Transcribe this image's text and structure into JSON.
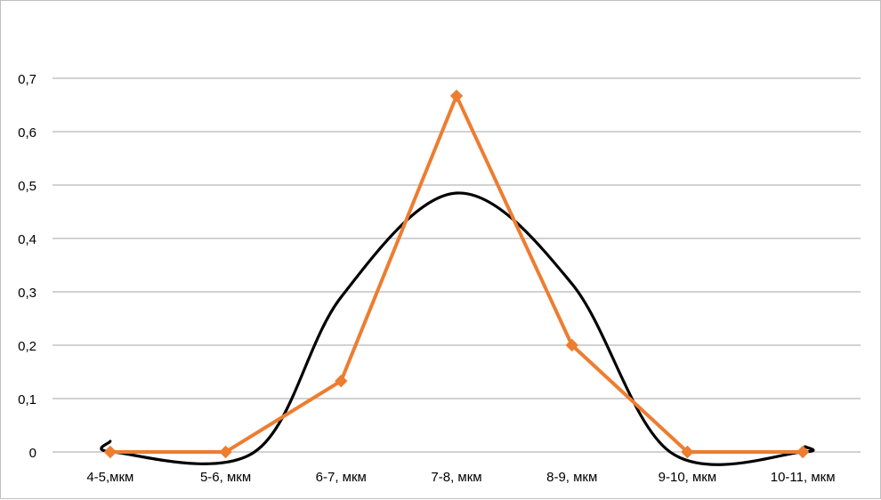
{
  "chart_data": {
    "type": "line",
    "title": "",
    "xlabel": "",
    "ylabel": "",
    "categories": [
      "4-5,мкм",
      "5-6, мкм",
      "6-7, мкм",
      "7-8, мкм",
      "8-9, мкм",
      "9-10, мкм",
      "10-11, мкм"
    ],
    "y_ticks": [
      "0",
      "0,1",
      "0,2",
      "0,3",
      "0,4",
      "0,5",
      "0,6",
      "0,7"
    ],
    "ylim": [
      0,
      0.7
    ],
    "grid": true,
    "legend": "none",
    "series": [
      {
        "color": "#ed7d31",
        "marker": "diamond",
        "values": [
          0,
          0,
          0.133,
          0.667,
          0.2,
          0,
          0
        ]
      },
      {
        "color": "#000000",
        "marker": "none",
        "smooth": true,
        "curve": [
          {
            "x": 0,
            "y": 0.02
          },
          {
            "x": 0.02,
            "y": 0.0
          },
          {
            "x": 1.25,
            "y": 0.0
          },
          {
            "x": 2,
            "y": 0.29
          },
          {
            "x": 3,
            "y": 0.485
          },
          {
            "x": 4,
            "y": 0.315
          },
          {
            "x": 4.85,
            "y": 0.0
          },
          {
            "x": 6,
            "y": 0.0
          },
          {
            "x": 6.02,
            "y": 0.01
          }
        ]
      }
    ]
  }
}
